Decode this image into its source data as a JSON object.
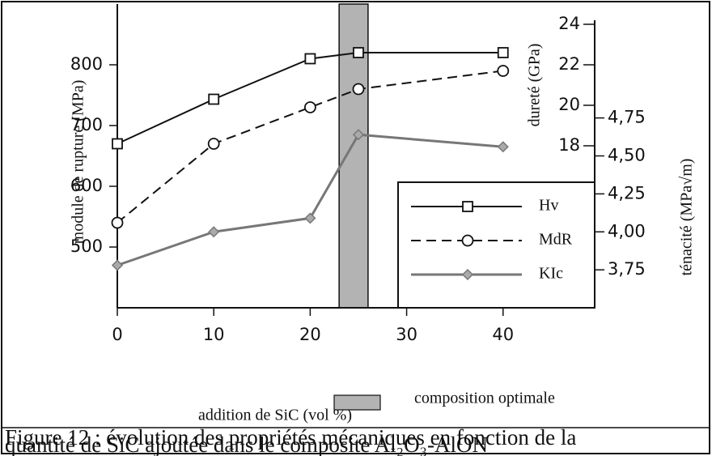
{
  "chart_data": {
    "type": "line",
    "xlabel": "addition  de SiC (vol %)",
    "ylabel": "module de rupture (MPa)",
    "y2label": "dureté (GPa)",
    "y3label": "ténacité (MPa√m)",
    "x": [
      0,
      10,
      20,
      25,
      40
    ],
    "xlim": [
      0,
      49.5
    ],
    "xticks": [
      0,
      10,
      20,
      30,
      40
    ],
    "ylim": [
      400,
      900
    ],
    "yticks": [
      500,
      600,
      700,
      800
    ],
    "y2lim": [
      10,
      25
    ],
    "y2ticks": [
      18,
      20,
      22,
      24
    ],
    "y3lim": [
      3.5,
      5.5
    ],
    "y3ticks": [
      {
        "value": 3.75,
        "label": "3,75"
      },
      {
        "value": 4.0,
        "label": "4,00"
      },
      {
        "value": 4.25,
        "label": "4,25"
      },
      {
        "value": 4.5,
        "label": "4,50"
      },
      {
        "value": 4.75,
        "label": "4,75"
      }
    ],
    "series": [
      {
        "name": "Hv",
        "color": "#111111",
        "axis": "y2",
        "marker": "square",
        "dash": "none",
        "values": [
          18.1,
          20.3,
          22.3,
          22.6,
          22.6
        ]
      },
      {
        "name": "MdR",
        "color": "#111111",
        "axis": "y",
        "marker": "circle",
        "dash": "12 7",
        "values": [
          540,
          670,
          730,
          760,
          790
        ]
      },
      {
        "name": "KIc",
        "color": "#777777",
        "axis": "y3",
        "marker": "diamond",
        "dash": "none",
        "values": [
          3.78,
          4.0,
          4.09,
          4.64,
          4.56
        ]
      }
    ],
    "shaded_region": {
      "name": "composition optimale",
      "x": [
        23,
        26
      ],
      "color": "#b3b3b3"
    },
    "caption": [
      "Figure 12 : évolution des propriétés mécaniques en fonction de la",
      "quantité de SiC ajoutée dans le composite Al₂O₃-AlON"
    ]
  }
}
